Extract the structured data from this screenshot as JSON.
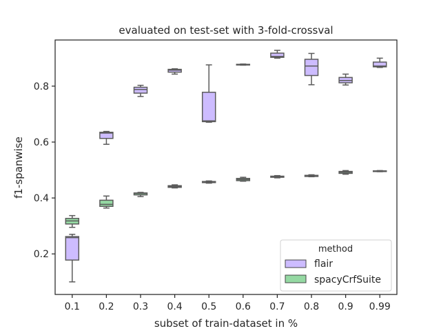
{
  "chart_data": {
    "type": "boxplot",
    "title": "evaluated on test-set with 3-fold-crossval",
    "xlabel": "subset of train-dataset in %",
    "ylabel": "f1-spanwise",
    "categories": [
      "0.1",
      "0.2",
      "0.3",
      "0.4",
      "0.5",
      "0.6",
      "0.7",
      "0.8",
      "0.9",
      "0.99"
    ],
    "ylim": [
      0.055,
      0.965
    ],
    "yticks": [
      "0.2",
      "0.4",
      "0.6",
      "0.8"
    ],
    "grid": false,
    "legend": {
      "title": "method",
      "placement": "lower-right"
    },
    "series": [
      {
        "name": "flair",
        "color": "#cdbcff",
        "boxes": [
          {
            "min": 0.1,
            "q1": 0.178,
            "median": 0.258,
            "q3": 0.262,
            "max": 0.27
          },
          {
            "min": 0.592,
            "q1": 0.613,
            "median": 0.632,
            "q3": 0.635,
            "max": 0.638
          },
          {
            "min": 0.763,
            "q1": 0.775,
            "median": 0.788,
            "q3": 0.796,
            "max": 0.803
          },
          {
            "min": 0.843,
            "q1": 0.85,
            "median": 0.857,
            "q3": 0.86,
            "max": 0.862
          },
          {
            "min": 0.671,
            "q1": 0.673,
            "median": 0.676,
            "q3": 0.778,
            "max": 0.876
          },
          {
            "min": 0.875,
            "q1": 0.876,
            "median": 0.877,
            "q3": 0.878,
            "max": 0.879
          },
          {
            "min": 0.9,
            "q1": 0.903,
            "median": 0.906,
            "q3": 0.918,
            "max": 0.928
          },
          {
            "min": 0.805,
            "q1": 0.838,
            "median": 0.872,
            "q3": 0.896,
            "max": 0.917
          },
          {
            "min": 0.804,
            "q1": 0.812,
            "median": 0.82,
            "q3": 0.831,
            "max": 0.843
          },
          {
            "min": 0.867,
            "q1": 0.869,
            "median": 0.872,
            "q3": 0.886,
            "max": 0.9
          }
        ]
      },
      {
        "name": "spacyCrfSuite",
        "color": "#95d9a3",
        "boxes": [
          {
            "min": 0.295,
            "q1": 0.307,
            "median": 0.318,
            "q3": 0.327,
            "max": 0.337
          },
          {
            "min": 0.364,
            "q1": 0.37,
            "median": 0.377,
            "q3": 0.392,
            "max": 0.407
          },
          {
            "min": 0.405,
            "q1": 0.411,
            "median": 0.416,
            "q3": 0.418,
            "max": 0.42
          },
          {
            "min": 0.436,
            "q1": 0.438,
            "median": 0.441,
            "q3": 0.444,
            "max": 0.447
          },
          {
            "min": 0.453,
            "q1": 0.455,
            "median": 0.457,
            "q3": 0.459,
            "max": 0.461
          },
          {
            "min": 0.46,
            "q1": 0.462,
            "median": 0.466,
            "q3": 0.47,
            "max": 0.474
          },
          {
            "min": 0.472,
            "q1": 0.474,
            "median": 0.476,
            "q3": 0.478,
            "max": 0.48
          },
          {
            "min": 0.476,
            "q1": 0.477,
            "median": 0.479,
            "q3": 0.481,
            "max": 0.483
          },
          {
            "min": 0.485,
            "q1": 0.488,
            "median": 0.492,
            "q3": 0.495,
            "max": 0.498
          },
          {
            "min": 0.494,
            "q1": 0.495,
            "median": 0.496,
            "q3": 0.497,
            "max": 0.498
          }
        ]
      }
    ]
  }
}
